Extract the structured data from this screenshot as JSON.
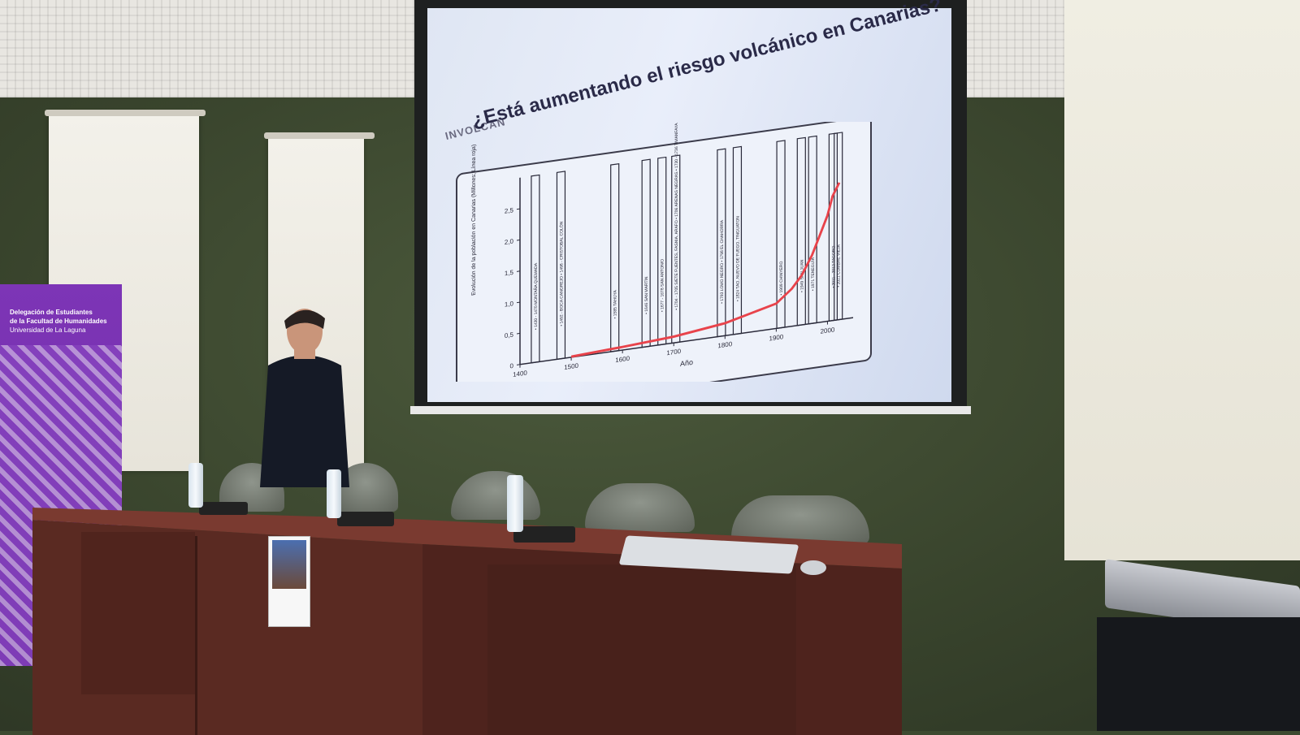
{
  "slide": {
    "logo": "INVOLCAN",
    "title": "¿Está aumentando el riesgo volcánico en Canarias?"
  },
  "banner": {
    "line1": "Delegación de Estudiantes",
    "line2": "de la Facultad de Humanidades",
    "line3": "Universidad de La Laguna"
  },
  "chart_data": {
    "type": "line",
    "title": "",
    "xlabel": "Año",
    "ylabel": "Evolución de la población en Canarias (Millones; Línea roja)",
    "x_ticks": [
      "1400",
      "1500",
      "1600",
      "1700",
      "1800",
      "1900",
      "2000"
    ],
    "y_ticks": [
      "0",
      "0,5",
      "1,0",
      "1,5",
      "2,0",
      "2,5"
    ],
    "xlim": [
      1400,
      2050
    ],
    "ylim": [
      0,
      3.0
    ],
    "series": [
      {
        "color": "#e8434b",
        "x": [
          1500,
          1600,
          1700,
          1750,
          1800,
          1850,
          1900,
          1930,
          1950,
          1970,
          1990,
          2000,
          2010,
          2023
        ],
        "y": [
          0.01,
          0.05,
          0.1,
          0.15,
          0.2,
          0.3,
          0.4,
          0.6,
          0.8,
          1.1,
          1.5,
          1.7,
          2.0,
          2.2
        ]
      }
    ],
    "eruptions": [
      {
        "x": 1430,
        "label": "• 1430 - 1470 MONTAÑA QUEMADA"
      },
      {
        "x": 1480,
        "label": "• 1492 - BOCA CANGREJO • 1498 - CRISTOBAL COLÓN"
      },
      {
        "x": 1585,
        "label": "• 1585 TAHUYA"
      },
      {
        "x": 1646,
        "label": "• 1646 SAN MARTÍN"
      },
      {
        "x": 1677,
        "label": "• 1677 - 1678 SAN ANTONIO"
      },
      {
        "x": 1704,
        "label": "• 1704 - 1705 SIETE FUENTES, FASNIA, ARAFO • 1706 ARENAS NEGRAS • 1730 - 1736 TIMANFAYA"
      },
      {
        "x": 1793,
        "label": "• 1793 LOMO NEGRO • 1798 EL CHAHORRA"
      },
      {
        "x": 1824,
        "label": "• 1824 TAO, NUEVO DE FUEGO, TINGUATON"
      },
      {
        "x": 1909,
        "label": "• 1909 CHINYERO"
      },
      {
        "x": 1949,
        "label": "• 1949 SAN JUAN"
      },
      {
        "x": 1971,
        "label": "• 1971 TENEGUÍA"
      },
      {
        "x": 2011,
        "label": "• 2011 - 2012 TAGORO"
      },
      {
        "x": 2021,
        "label": "• 2021 CUMBRE VIEJA"
      }
    ]
  }
}
